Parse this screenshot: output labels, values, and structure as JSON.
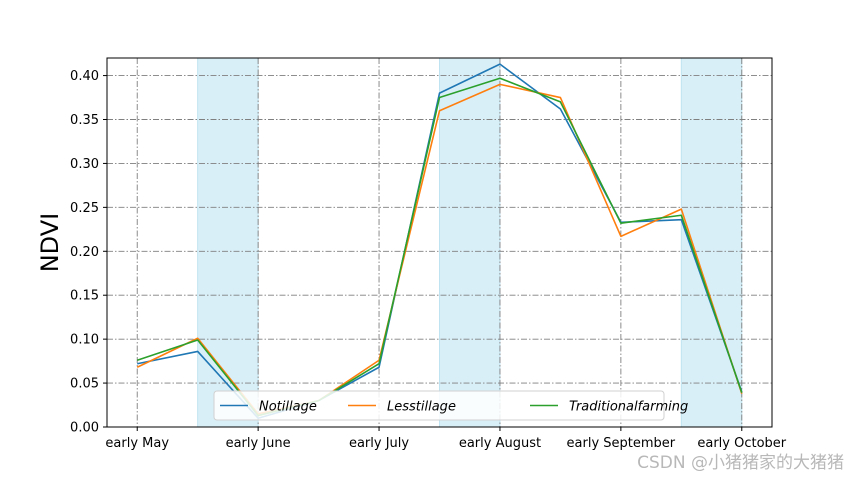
{
  "chart_data": {
    "type": "line",
    "title": "",
    "xlabel": "",
    "ylabel": "NDVI",
    "x": [
      0,
      1,
      2,
      3,
      4,
      5,
      6,
      7,
      8,
      9,
      10
    ],
    "xticks": [
      {
        "at": 0,
        "label": "early May"
      },
      {
        "at": 2,
        "label": "early June"
      },
      {
        "at": 4,
        "label": "early July"
      },
      {
        "at": 6,
        "label": "early August"
      },
      {
        "at": 8,
        "label": "early September"
      },
      {
        "at": 10,
        "label": "early October"
      }
    ],
    "xlim": [
      -0.5,
      10.5
    ],
    "ylim": [
      0,
      0.42
    ],
    "yticks": [
      "0.00",
      "0.05",
      "0.10",
      "0.15",
      "0.20",
      "0.25",
      "0.30",
      "0.35",
      "0.40"
    ],
    "grid": true,
    "shaded_regions": [
      [
        1,
        2
      ],
      [
        5,
        6
      ],
      [
        9,
        10
      ]
    ],
    "shade_color": "#d9eff8",
    "legend_position": "lower-center",
    "series": [
      {
        "name": "Notillage",
        "color": "#1f77b4",
        "values": [
          0.072,
          0.086,
          0.01,
          0.03,
          0.068,
          0.38,
          0.413,
          0.362,
          0.233,
          0.236,
          0.04
        ]
      },
      {
        "name": "Lesstillage",
        "color": "#ff7f0e",
        "values": [
          0.068,
          0.101,
          0.015,
          0.03,
          0.076,
          0.36,
          0.39,
          0.375,
          0.217,
          0.248,
          0.038
        ]
      },
      {
        "name": "Traditionalfarming",
        "color": "#2ca02c",
        "values": [
          0.076,
          0.099,
          0.013,
          0.03,
          0.072,
          0.375,
          0.397,
          0.37,
          0.232,
          0.241,
          0.039
        ]
      }
    ]
  },
  "watermark": "CSDN @小猪猪家的大猪猪"
}
